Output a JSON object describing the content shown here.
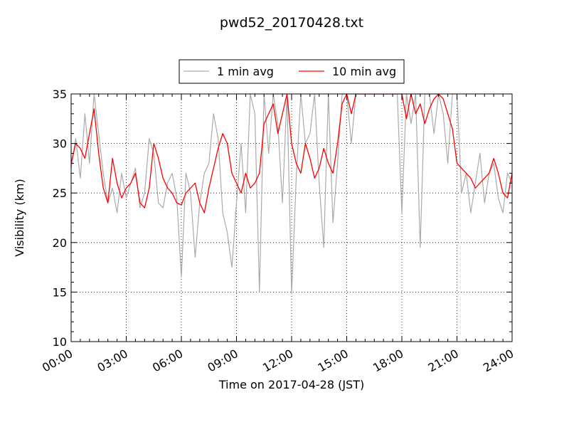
{
  "chart_data": {
    "type": "line",
    "title": "pwd52_20170428.txt",
    "xlabel": "Time on 2017-04-28 (JST)",
    "ylabel": "Visibility (km)",
    "x_ticks": [
      "00:00",
      "03:00",
      "06:00",
      "09:00",
      "12:00",
      "15:00",
      "18:00",
      "21:00",
      "24:00"
    ],
    "y_ticks": [
      "10",
      "15",
      "20",
      "25",
      "30",
      "35"
    ],
    "xlim": [
      "00:00",
      "24:00"
    ],
    "ylim": [
      10,
      35
    ],
    "grid": true,
    "legend_position": "top-center, above plot",
    "series": [
      {
        "name": "1 min avg",
        "color": "#aaaaaa",
        "x": [
          "00:00",
          "00:15",
          "00:30",
          "00:45",
          "01:00",
          "01:15",
          "01:30",
          "01:45",
          "02:00",
          "02:15",
          "02:30",
          "02:45",
          "03:00",
          "03:15",
          "03:30",
          "03:45",
          "04:00",
          "04:15",
          "04:30",
          "04:45",
          "05:00",
          "05:15",
          "05:30",
          "05:45",
          "06:00",
          "06:15",
          "06:30",
          "06:45",
          "07:00",
          "07:15",
          "07:30",
          "07:45",
          "08:00",
          "08:15",
          "08:30",
          "08:45",
          "09:00",
          "09:15",
          "09:30",
          "09:45",
          "10:00",
          "10:15",
          "10:30",
          "10:45",
          "11:00",
          "11:15",
          "11:30",
          "11:45",
          "12:00",
          "12:15",
          "12:30",
          "12:45",
          "13:00",
          "13:15",
          "13:30",
          "13:45",
          "14:00",
          "14:15",
          "14:30",
          "14:45",
          "15:00",
          "15:15",
          "15:30",
          "15:45",
          "16:00",
          "16:15",
          "16:30",
          "16:45",
          "17:00",
          "17:15",
          "17:30",
          "17:45",
          "18:00",
          "18:15",
          "18:30",
          "18:45",
          "19:00",
          "19:15",
          "19:30",
          "19:45",
          "20:00",
          "20:15",
          "20:30",
          "20:45",
          "21:00",
          "21:15",
          "21:30",
          "21:45",
          "22:00",
          "22:15",
          "22:30",
          "22:45",
          "23:00",
          "23:15",
          "23:30",
          "23:45",
          "24:00"
        ],
        "values": [
          27.5,
          30.5,
          26.5,
          33,
          28,
          35,
          31,
          27,
          24,
          25.5,
          23,
          27,
          24.5,
          26,
          27.5,
          23.5,
          25,
          30.5,
          29,
          24,
          23.5,
          26,
          27,
          24.5,
          16.5,
          27,
          25,
          18.5,
          24,
          27,
          28,
          33,
          30.5,
          23,
          21,
          17.5,
          24,
          30,
          23,
          35,
          33,
          15,
          35,
          29,
          35,
          32,
          24,
          35,
          14.8,
          26.5,
          35,
          30,
          31,
          35,
          26,
          19.5,
          35,
          22,
          28,
          35,
          35,
          30,
          35,
          35,
          35,
          35,
          35,
          35,
          35,
          35,
          35,
          35,
          23,
          35,
          32,
          35,
          19.5,
          35,
          35,
          31,
          35,
          33,
          28,
          35,
          35,
          25,
          27,
          23,
          26,
          29,
          24,
          27,
          28,
          24.5,
          23,
          27,
          26
        ]
      },
      {
        "name": "10 min avg",
        "color": "#ff0000",
        "x": [
          "00:00",
          "00:15",
          "00:30",
          "00:45",
          "01:00",
          "01:15",
          "01:30",
          "01:45",
          "02:00",
          "02:15",
          "02:30",
          "02:45",
          "03:00",
          "03:15",
          "03:30",
          "03:45",
          "04:00",
          "04:15",
          "04:30",
          "04:45",
          "05:00",
          "05:15",
          "05:30",
          "05:45",
          "06:00",
          "06:15",
          "06:30",
          "06:45",
          "07:00",
          "07:15",
          "07:30",
          "07:45",
          "08:00",
          "08:15",
          "08:30",
          "08:45",
          "09:00",
          "09:15",
          "09:30",
          "09:45",
          "10:00",
          "10:15",
          "10:30",
          "10:45",
          "11:00",
          "11:15",
          "11:30",
          "11:45",
          "12:00",
          "12:15",
          "12:30",
          "12:45",
          "13:00",
          "13:15",
          "13:30",
          "13:45",
          "14:00",
          "14:15",
          "14:30",
          "14:45",
          "15:00",
          "15:15",
          "15:30",
          "15:45",
          "16:00",
          "16:15",
          "16:30",
          "16:45",
          "17:00",
          "17:15",
          "17:30",
          "17:45",
          "18:00",
          "18:15",
          "18:30",
          "18:45",
          "19:00",
          "19:15",
          "19:30",
          "19:45",
          "20:00",
          "20:15",
          "20:30",
          "20:45",
          "21:00",
          "21:15",
          "21:30",
          "21:45",
          "22:00",
          "22:15",
          "22:30",
          "22:45",
          "23:00",
          "23:15",
          "23:30",
          "23:45",
          "24:00"
        ],
        "values": [
          28,
          30,
          29.5,
          28.5,
          31,
          33.5,
          29,
          25.5,
          24,
          28.5,
          26,
          24.5,
          25.5,
          26,
          27,
          24,
          23.5,
          25.5,
          30,
          28.5,
          26.5,
          25.5,
          25,
          24,
          23.8,
          25,
          25.5,
          26,
          24,
          23,
          25.5,
          27.5,
          29.5,
          31,
          30,
          27,
          26,
          25,
          27,
          25.5,
          26,
          27,
          32,
          33,
          34,
          31,
          33,
          35,
          30,
          28,
          27,
          30,
          28.5,
          26.5,
          27.5,
          29.5,
          28,
          27,
          30,
          34,
          35,
          33,
          35,
          35,
          35,
          35,
          35,
          35,
          35,
          35,
          35,
          35,
          35,
          32.5,
          35,
          33,
          34,
          32,
          33.5,
          34.5,
          35,
          34.5,
          33,
          31.5,
          28,
          27.5,
          27,
          26.5,
          25.5,
          26,
          26.5,
          27,
          28.5,
          27,
          25,
          24.5,
          27
        ]
      }
    ]
  }
}
